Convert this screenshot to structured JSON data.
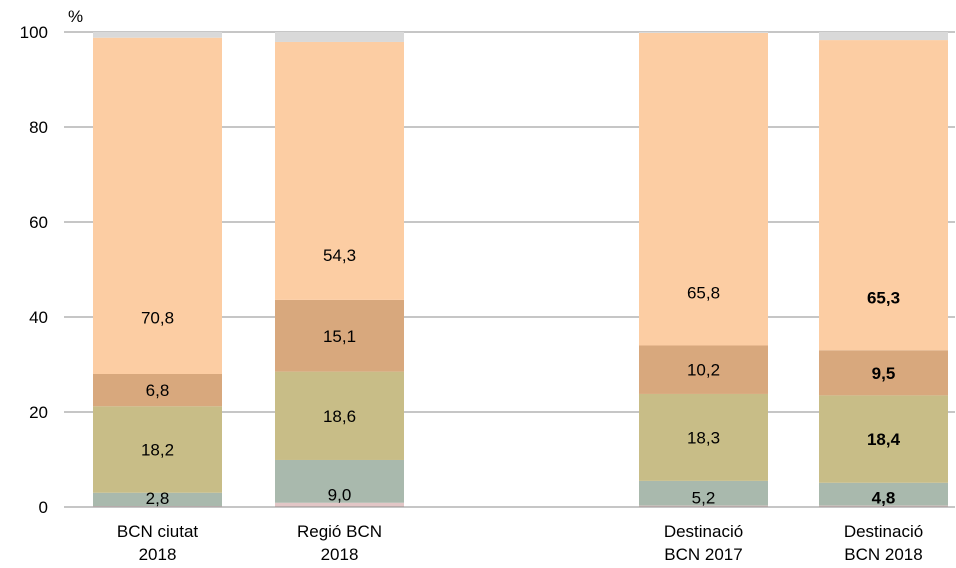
{
  "chart_data": {
    "type": "bar",
    "stacked": true,
    "ylabel": "%",
    "ylim": [
      0,
      100
    ],
    "yticks": [
      "0",
      "20",
      "40",
      "60",
      "80",
      "100"
    ],
    "grid": true,
    "legend": "none",
    "segment_colors": [
      "#e2c6c6",
      "#a9b9ad",
      "#c8bd87",
      "#d8a87d",
      "#fccda3",
      "#d9d9d9"
    ],
    "categories": [
      {
        "line1": "BCN ciutat",
        "line2": "2018"
      },
      {
        "line1": "Regió BCN",
        "line2": "2018"
      },
      {
        "line1": "Destinació",
        "line2": "BCN 2017"
      },
      {
        "line1": "Destinació",
        "line2": "BCN 2018"
      }
    ],
    "bars": [
      {
        "segments": [
          0.2,
          2.8,
          18.2,
          6.8,
          70.8,
          1.2
        ],
        "labels": [
          "",
          "2,8",
          "18,2",
          "6,8",
          "70,8",
          ""
        ],
        "bold": false
      },
      {
        "segments": [
          0.9,
          9.0,
          18.6,
          15.1,
          54.3,
          2.1
        ],
        "labels": [
          "",
          "9,0",
          "18,6",
          "15,1",
          "54,3",
          ""
        ],
        "bold": false
      },
      {
        "segments": [
          0.3,
          5.2,
          18.3,
          10.2,
          65.8,
          0.2
        ],
        "labels": [
          "",
          "5,2",
          "18,3",
          "10,2",
          "65,8",
          ""
        ],
        "bold": false
      },
      {
        "segments": [
          0.3,
          4.8,
          18.4,
          9.5,
          65.3,
          1.7
        ],
        "labels": [
          "",
          "4,8",
          "18,4",
          "9,5",
          "65,3",
          ""
        ],
        "bold": true
      }
    ]
  }
}
